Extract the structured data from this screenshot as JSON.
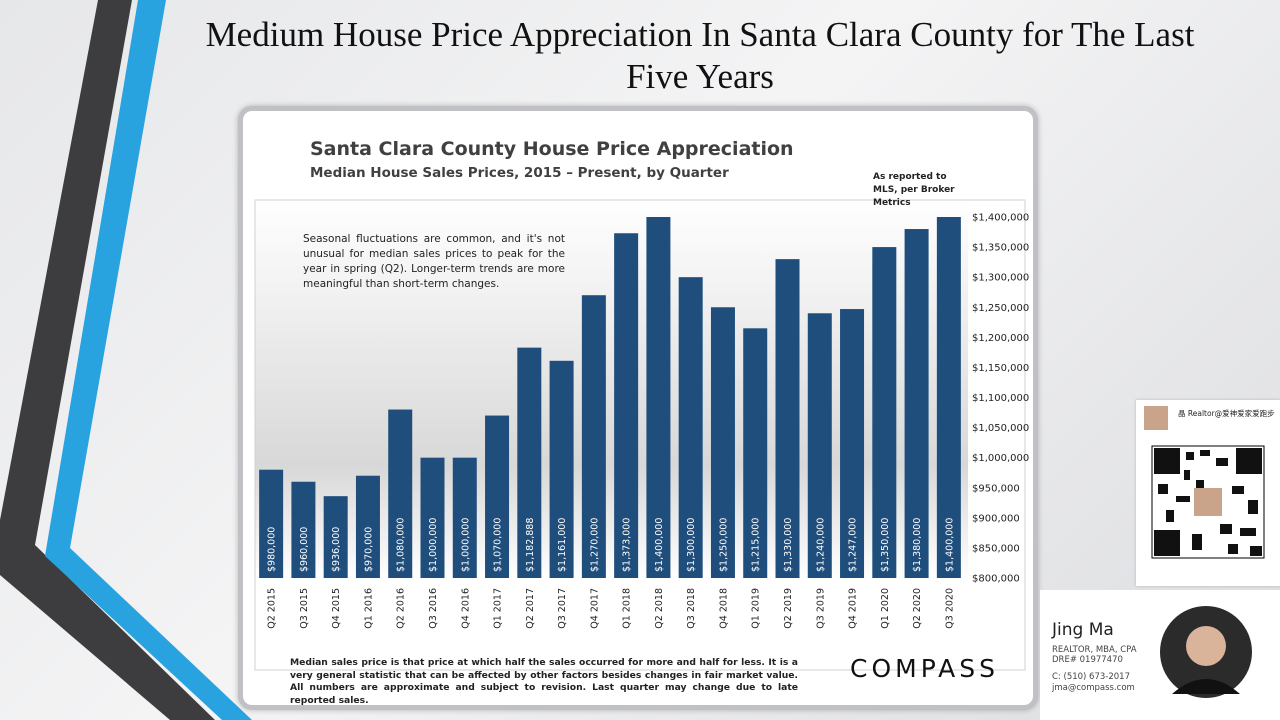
{
  "slide_title": "Medium House Price Appreciation In Santa Clara County for The Last Five Years",
  "chart_data": {
    "type": "bar",
    "title": "Santa Clara County House Price Appreciation",
    "subtitle": "Median House Sales Prices, 2015 – Present, by Quarter",
    "source_note": "As reported to MLS, per Broker Metrics",
    "annotation": "Seasonal fluctuations are common, and it's not unusual for median sales prices to peak for the year in spring (Q2). Longer-term trends are more meaningful than short-term changes.",
    "footnote": "Median sales price is that price at which half the sales occurred for more and half for less. It is a very general statistic that can be affected by other factors besides changes in fair market value. All numbers are approximate and subject to revision. Last quarter may change due to late reported sales.",
    "categories": [
      "Q2 2015",
      "Q3 2015",
      "Q4 2015",
      "Q1 2016",
      "Q2 2016",
      "Q3 2016",
      "Q4 2016",
      "Q1 2017",
      "Q2 2017",
      "Q3 2017",
      "Q4 2017",
      "Q1 2018",
      "Q2 2018",
      "Q3 2018",
      "Q4 2018",
      "Q1 2019",
      "Q2 2019",
      "Q3 2019",
      "Q4 2019",
      "Q1 2020",
      "Q2 2020",
      "Q3 2020"
    ],
    "values": [
      980000,
      960000,
      936000,
      970000,
      1080000,
      1000000,
      1000000,
      1070000,
      1182888,
      1161000,
      1270000,
      1373000,
      1400000,
      1300000,
      1250000,
      1215000,
      1330000,
      1240000,
      1247000,
      1350000,
      1380000,
      1400000
    ],
    "value_labels": [
      "$980,000",
      "$960,000",
      "$936,000",
      "$970,000",
      "$1,080,000",
      "$1,000,000",
      "$1,000,000",
      "$1,070,000",
      "$1,182,888",
      "$1,161,000",
      "$1,270,000",
      "$1,373,000",
      "$1,400,000",
      "$1,300,000",
      "$1,250,000",
      "$1,215,000",
      "$1,330,000",
      "$1,240,000",
      "$1,247,000",
      "$1,350,000",
      "$1,380,000",
      "$1,400,000"
    ],
    "color": "#1f4e7c",
    "ylim": [
      800000,
      1400000
    ],
    "yticks": [
      {
        "value": 800000,
        "label": "$800,000"
      },
      {
        "value": 850000,
        "label": "$850,000"
      },
      {
        "value": 900000,
        "label": "$900,000"
      },
      {
        "value": 950000,
        "label": "$950,000"
      },
      {
        "value": 1000000,
        "label": "$1,000,000"
      },
      {
        "value": 1050000,
        "label": "$1,050,000"
      },
      {
        "value": 1100000,
        "label": "$1,100,000"
      },
      {
        "value": 1150000,
        "label": "$1,150,000"
      },
      {
        "value": 1200000,
        "label": "$1,200,000"
      },
      {
        "value": 1250000,
        "label": "$1,250,000"
      },
      {
        "value": 1300000,
        "label": "$1,300,000"
      },
      {
        "value": 1350000,
        "label": "$1,350,000"
      },
      {
        "value": 1400000,
        "label": "$1,400,000"
      }
    ],
    "grid": false
  },
  "brand": "COMPASS",
  "qr_card": {
    "name": "晶 Realtor@爱神爱家爱跑步"
  },
  "agent": {
    "name": "Jing Ma",
    "credentials": "REALTOR, MBA, CPA",
    "license": "DRE# 01977470",
    "phone": "C: (510) 673-2017",
    "email": "jma@compass.com"
  }
}
